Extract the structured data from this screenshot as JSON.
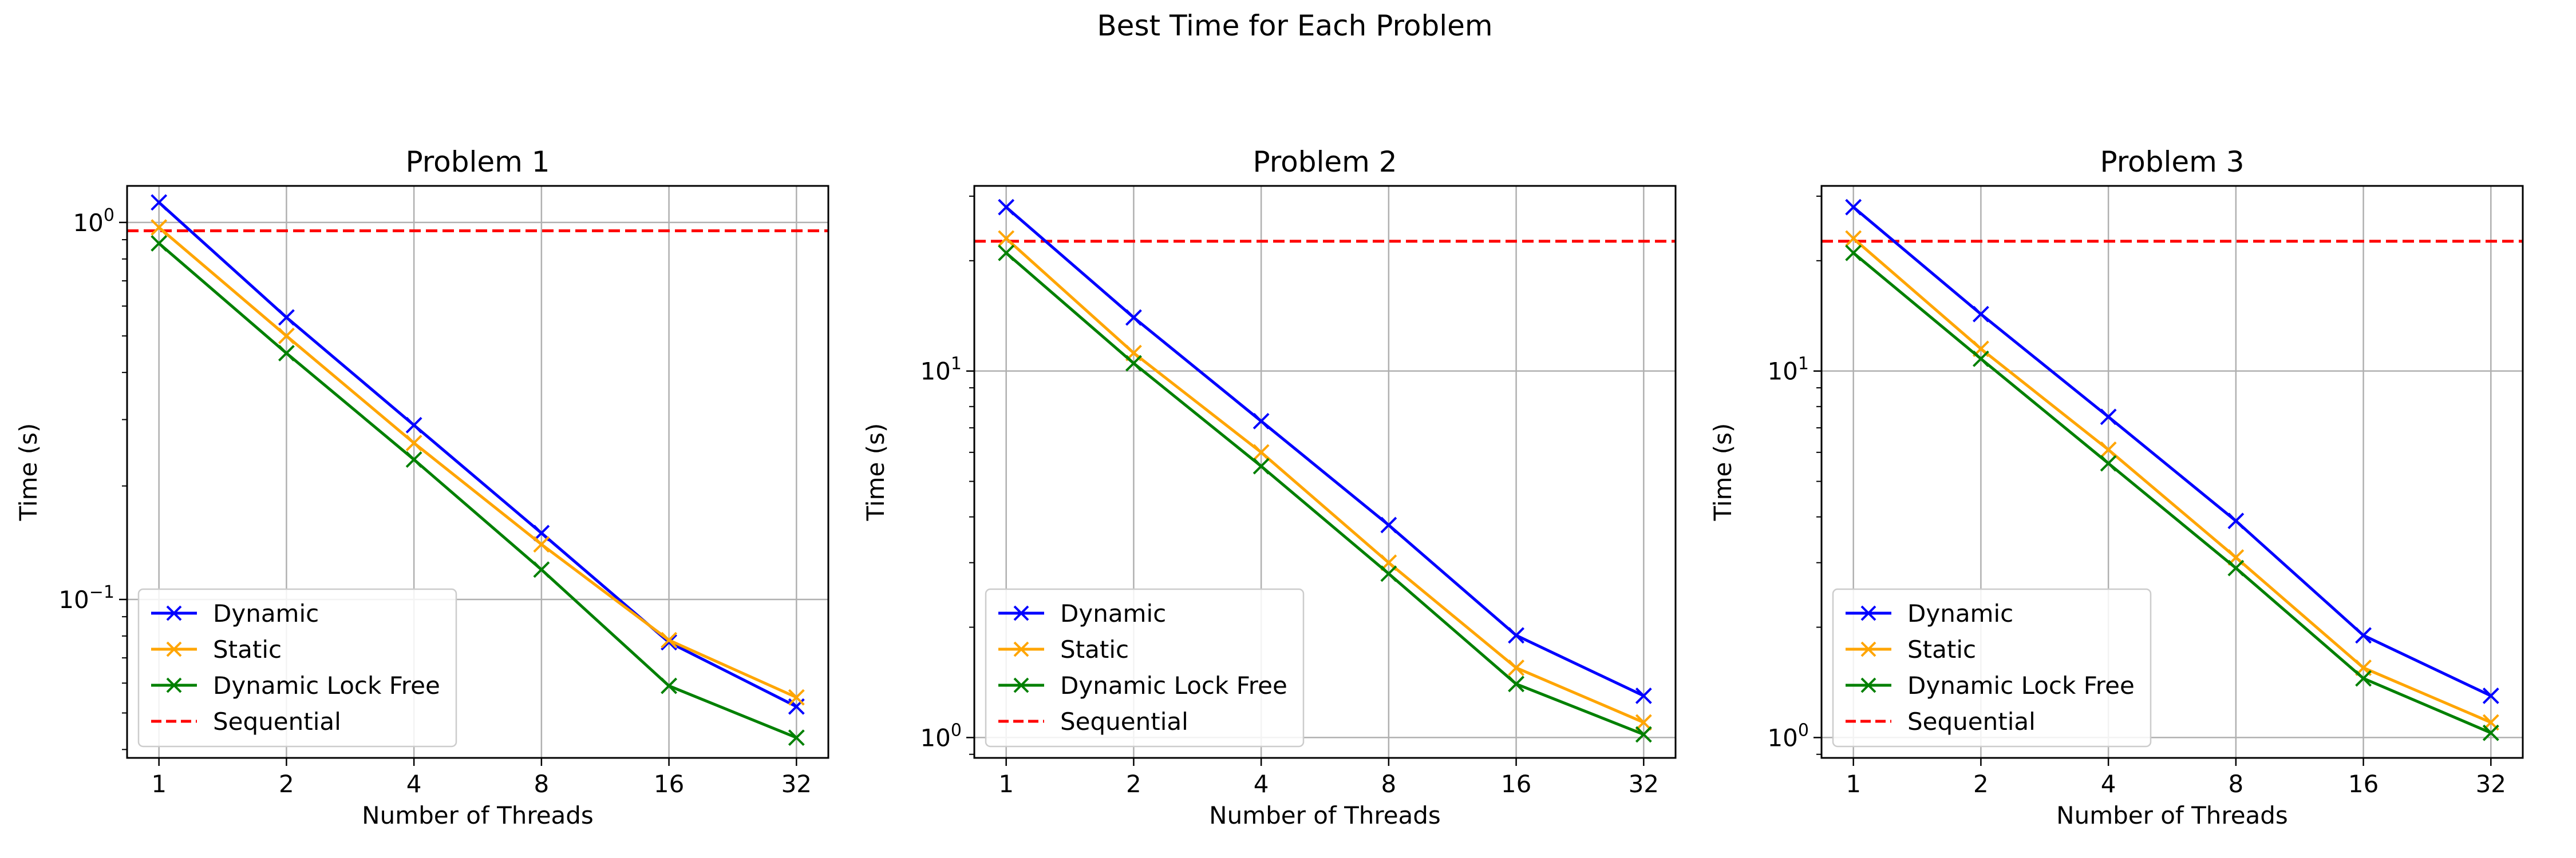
{
  "suptitle": "Best Time for Each Problem",
  "colors": {
    "Dynamic": "#0000ff",
    "Static": "#ffa500",
    "Dynamic Lock Free": "#008000",
    "Sequential": "#ff0000"
  },
  "chart_data": [
    {
      "type": "line",
      "title": "Problem 1",
      "xlabel": "Number of Threads",
      "ylabel": "Time (s)",
      "x_scale": "log2",
      "y_scale": "log10",
      "x": [
        1,
        2,
        4,
        8,
        16,
        32
      ],
      "xticklabels": [
        "1",
        "2",
        "4",
        "8",
        "16",
        "32"
      ],
      "yticks": [
        {
          "value": 1,
          "label": "10^0"
        },
        {
          "value": 0.1,
          "label": "10^-1"
        }
      ],
      "ylim": [
        0.038,
        1.25
      ],
      "grid": true,
      "legend": "lower left",
      "series": [
        {
          "name": "Dynamic",
          "marker": "x",
          "values": [
            1.13,
            0.56,
            0.29,
            0.15,
            0.077,
            0.052
          ]
        },
        {
          "name": "Static",
          "marker": "x",
          "values": [
            0.97,
            0.5,
            0.26,
            0.14,
            0.078,
            0.055
          ]
        },
        {
          "name": "Dynamic Lock Free",
          "marker": "x",
          "values": [
            0.88,
            0.45,
            0.235,
            0.12,
            0.059,
            0.043
          ]
        }
      ],
      "reference_line": {
        "name": "Sequential",
        "value": 0.95,
        "style": "dashed"
      }
    },
    {
      "type": "line",
      "title": "Problem 2",
      "xlabel": "Number of Threads",
      "ylabel": "Time (s)",
      "x_scale": "log2",
      "y_scale": "log10",
      "x": [
        1,
        2,
        4,
        8,
        16,
        32
      ],
      "xticklabels": [
        "1",
        "2",
        "4",
        "8",
        "16",
        "32"
      ],
      "yticks": [
        {
          "value": 10,
          "label": "10^1"
        },
        {
          "value": 1,
          "label": "10^0"
        }
      ],
      "ylim": [
        0.88,
        32
      ],
      "grid": true,
      "legend": "lower left",
      "series": [
        {
          "name": "Dynamic",
          "marker": "x",
          "values": [
            28,
            14,
            7.3,
            3.8,
            1.9,
            1.3
          ]
        },
        {
          "name": "Static",
          "marker": "x",
          "values": [
            23,
            11.2,
            6.0,
            3.0,
            1.55,
            1.1
          ]
        },
        {
          "name": "Dynamic Lock Free",
          "marker": "x",
          "values": [
            21,
            10.5,
            5.5,
            2.8,
            1.4,
            1.02
          ]
        }
      ],
      "reference_line": {
        "name": "Sequential",
        "value": 22.6,
        "style": "dashed"
      }
    },
    {
      "type": "line",
      "title": "Problem 3",
      "xlabel": "Number of Threads",
      "ylabel": "Time (s)",
      "x_scale": "log2",
      "y_scale": "log10",
      "x": [
        1,
        2,
        4,
        8,
        16,
        32
      ],
      "xticklabels": [
        "1",
        "2",
        "4",
        "8",
        "16",
        "32"
      ],
      "yticks": [
        {
          "value": 10,
          "label": "10^1"
        },
        {
          "value": 1,
          "label": "10^0"
        }
      ],
      "ylim": [
        0.88,
        32
      ],
      "grid": true,
      "legend": "lower left",
      "series": [
        {
          "name": "Dynamic",
          "marker": "x",
          "values": [
            28,
            14.3,
            7.5,
            3.9,
            1.9,
            1.3
          ]
        },
        {
          "name": "Static",
          "marker": "x",
          "values": [
            23,
            11.5,
            6.1,
            3.1,
            1.55,
            1.1
          ]
        },
        {
          "name": "Dynamic Lock Free",
          "marker": "x",
          "values": [
            21,
            10.8,
            5.6,
            2.9,
            1.45,
            1.03
          ]
        }
      ],
      "reference_line": {
        "name": "Sequential",
        "value": 22.6,
        "style": "dashed"
      }
    }
  ]
}
